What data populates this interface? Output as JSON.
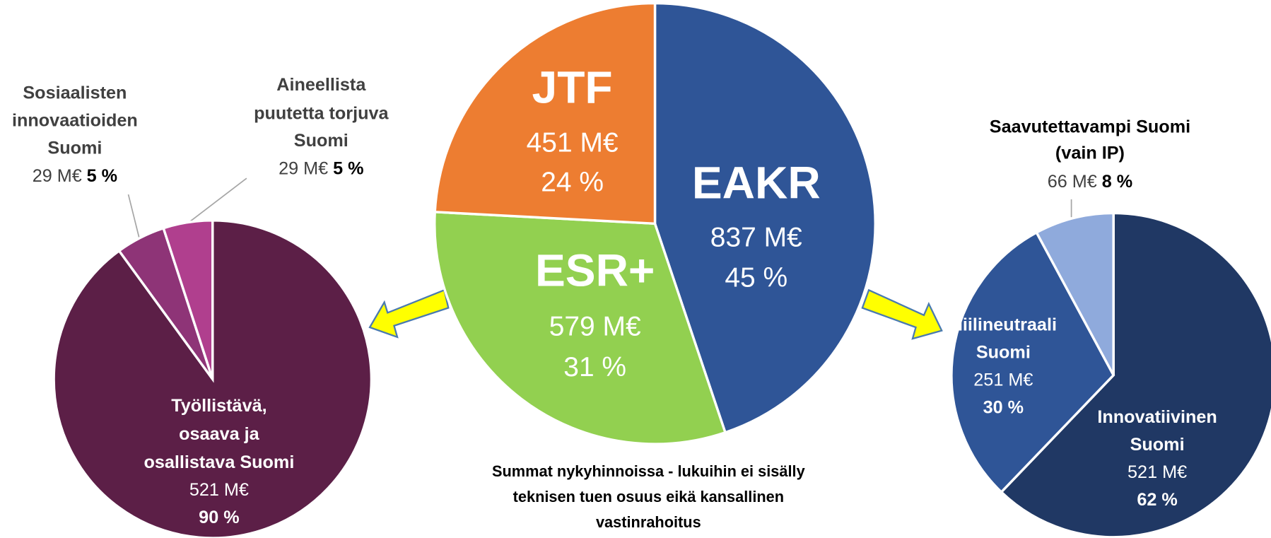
{
  "chart_data": [
    {
      "type": "pie",
      "categories": [
        [
          "Työllistävä,",
          "osaava ja",
          "osallistava Suomi"
        ],
        [
          "Sosiaalisten",
          "innovaatioiden",
          "Suomi"
        ],
        [
          "Aineellista",
          "puutetta torjuva",
          "Suomi"
        ]
      ],
      "values": [
        521,
        29,
        29
      ],
      "value_labels": [
        "521 M€",
        "29 M€",
        "29 M€"
      ],
      "percents": [
        90,
        5,
        5
      ],
      "percent_labels": [
        "90 %",
        "5 %",
        "5 %"
      ],
      "colors": [
        "#5c1f47",
        "#8e3477",
        "#b03f8e"
      ]
    },
    {
      "type": "pie",
      "categories": [
        [
          "EAKR"
        ],
        [
          "ESR+"
        ],
        [
          "JTF"
        ]
      ],
      "values": [
        837,
        579,
        451
      ],
      "value_labels": [
        "837 M€",
        "579 M€",
        "451 M€"
      ],
      "percents": [
        45,
        31,
        24
      ],
      "percent_labels": [
        "45 %",
        "31 %",
        "24 %"
      ],
      "colors": [
        "#2f5597",
        "#92d050",
        "#ed7d31"
      ],
      "note": [
        "Summat nykyhinnoissa - lukuihin ei sisälly",
        "teknisen tuen osuus eikä kansallinen",
        "vastinrahoitus"
      ]
    },
    {
      "type": "pie",
      "categories": [
        [
          "Innovatiivinen",
          "Suomi"
        ],
        [
          "Hiilineutraali",
          "Suomi"
        ],
        [
          "Saavutettavampi Suomi",
          "(vain IP)"
        ]
      ],
      "values": [
        521,
        251,
        66
      ],
      "value_labels": [
        "521 M€",
        "251 M€",
        "66 M€"
      ],
      "percents": [
        62,
        30,
        8
      ],
      "percent_labels": [
        "62 %",
        "30 %",
        "8 %"
      ],
      "colors": [
        "#203864",
        "#2f5597",
        "#8faadc"
      ]
    }
  ]
}
